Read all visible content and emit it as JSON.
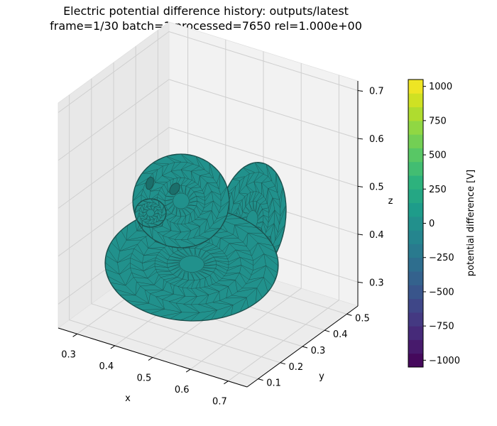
{
  "chart_data": {
    "type": "surface3d",
    "title_line1": "Electric potential difference history: outputs/latest",
    "title_line2": "frame=1/30 batch=1 processed=7650 rel=1.000e+00",
    "xlabel": "x",
    "ylabel": "y",
    "zlabel": "z",
    "xticks": [
      "0.3",
      "0.4",
      "0.5",
      "0.6",
      "0.7"
    ],
    "yticks": [
      "0.1",
      "0.2",
      "0.3",
      "0.4",
      "0.5"
    ],
    "zticks": [
      "0.3",
      "0.4",
      "0.5",
      "0.6",
      "0.7"
    ],
    "xlim": [
      0.25,
      0.75
    ],
    "ylim": [
      0.05,
      0.55
    ],
    "zlim": [
      0.25,
      0.72
    ],
    "grid": true,
    "mesh_color": "#21918c",
    "edge_color": "#1a4f4c",
    "surface_value": 0,
    "colorbar": {
      "label": "potential difference [V]",
      "min": -1050,
      "max": 1050,
      "ticks": [
        "1000",
        "750",
        "500",
        "250",
        "0",
        "−250",
        "−500",
        "−750",
        "−1000"
      ],
      "tick_values": [
        1000,
        750,
        500,
        250,
        0,
        -250,
        -500,
        -750,
        -1000
      ],
      "colormap": "viridis",
      "levels": 21
    }
  }
}
